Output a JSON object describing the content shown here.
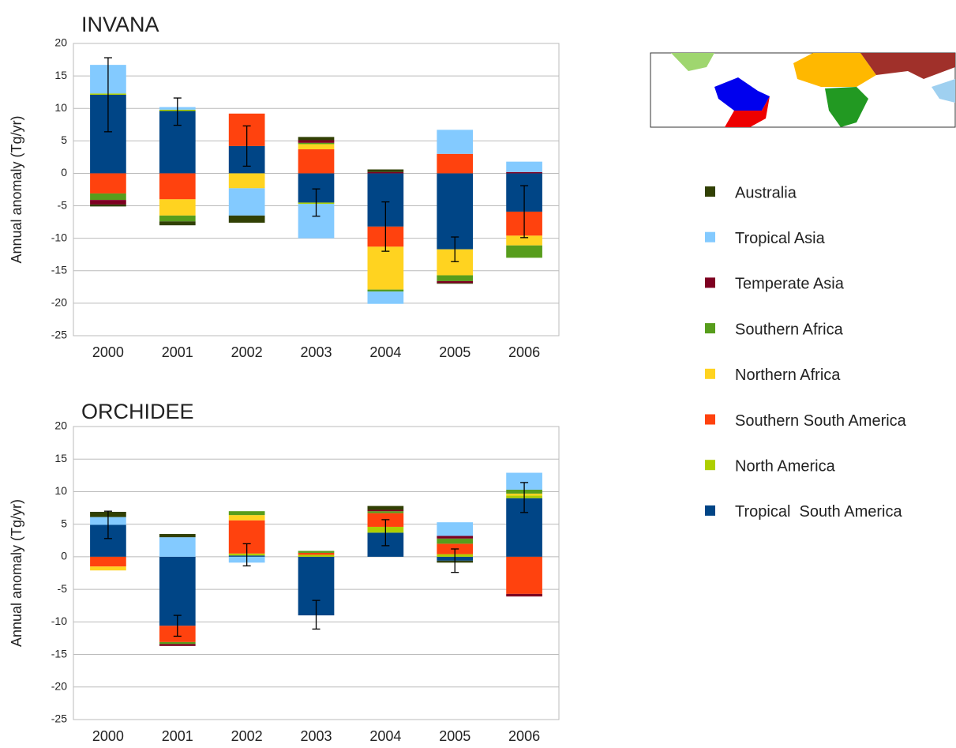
{
  "chart_data": [
    {
      "type": "stacked_bar",
      "title": "INVANA",
      "y_label": "Annual anomaly (Tg/yr)",
      "categories": [
        "2000",
        "2001",
        "2002",
        "2003",
        "2004",
        "2005",
        "2006"
      ],
      "ylim": [
        -25,
        20
      ],
      "yticks": [
        -25,
        -20,
        -15,
        -10,
        -5,
        0,
        5,
        10,
        15,
        20
      ],
      "grid": true,
      "series": [
        {
          "name": "Tropical  South America",
          "color": "#004586",
          "values": [
            12.1,
            9.6,
            4.2,
            -4.5,
            -8.2,
            -11.7,
            -5.9
          ]
        },
        {
          "name": "North America",
          "color": "#aecf00",
          "values": [
            0.2,
            0.2,
            0,
            -0.2,
            0,
            0,
            0
          ]
        },
        {
          "name": "Southern South America",
          "color": "#ff420e",
          "values": [
            -3.1,
            -4.0,
            5.0,
            3.7,
            -3.1,
            3.0,
            -3.7
          ]
        },
        {
          "name": "Northern Africa",
          "color": "#ffd320",
          "values": [
            0,
            -2.5,
            -2.3,
            0.8,
            -6.6,
            -4.0,
            -1.5
          ]
        },
        {
          "name": "Southern Africa",
          "color": "#579d1c",
          "values": [
            -1.0,
            -0.9,
            0,
            0.2,
            -0.3,
            -0.9,
            -1.9
          ]
        },
        {
          "name": "Temperate Asia",
          "color": "#7e0021",
          "values": [
            -0.7,
            0,
            0,
            0.4,
            0.2,
            -0.3,
            0.2
          ]
        },
        {
          "name": "Tropical Asia",
          "color": "#83caff",
          "values": [
            4.4,
            0.4,
            -4.2,
            -5.3,
            -1.9,
            3.7,
            1.6
          ]
        },
        {
          "name": "Australia",
          "color": "#314004",
          "values": [
            -0.3,
            -0.6,
            -1.1,
            0.5,
            0.4,
            -0.1,
            0
          ]
        }
      ],
      "error_bars": {
        "center": [
          12.1,
          9.5,
          4.2,
          -4.5,
          -8.2,
          -11.7,
          -5.9
        ],
        "error": [
          5.7,
          2.1,
          3.1,
          2.1,
          3.8,
          1.9,
          4.0
        ]
      }
    },
    {
      "type": "stacked_bar",
      "title": "ORCHIDEE",
      "y_label": "Annual anomaly (Tg/yr)",
      "categories": [
        "2000",
        "2001",
        "2002",
        "2003",
        "2004",
        "2005",
        "2006"
      ],
      "ylim": [
        -25,
        20
      ],
      "yticks": [
        -25,
        -20,
        -15,
        -10,
        -5,
        0,
        5,
        10,
        15,
        20
      ],
      "grid": true,
      "series": [
        {
          "color": "#004586",
          "values": [
            4.9,
            -10.6,
            0.2,
            -9.0,
            3.7,
            -0.6,
            9.0
          ]
        },
        {
          "color": "#aecf00",
          "values": [
            0,
            0,
            0.3,
            0.3,
            0.9,
            0.4,
            0.4
          ]
        },
        {
          "color": "#ff420e",
          "values": [
            -1.5,
            -2.5,
            5.1,
            0.3,
            2.1,
            1.6,
            -5.7
          ]
        },
        {
          "color": "#ffd320",
          "values": [
            -0.6,
            0,
            0.8,
            0,
            0,
            0,
            0.3
          ]
        },
        {
          "color": "#579d1c",
          "values": [
            0,
            -0.3,
            0.6,
            0.3,
            0.3,
            0.8,
            0.6
          ]
        },
        {
          "color": "#7e0021",
          "values": [
            0,
            -0.3,
            0,
            0,
            0.2,
            0.4,
            -0.4
          ]
        },
        {
          "color": "#83caff",
          "values": [
            1.2,
            3.0,
            -0.9,
            0,
            0,
            2.1,
            2.6
          ]
        },
        {
          "color": "#314004",
          "values": [
            0.8,
            0.5,
            0,
            0,
            0.6,
            -0.3,
            0
          ]
        }
      ],
      "error_bars": {
        "center": [
          4.9,
          -10.6,
          0.3,
          -8.9,
          3.7,
          -0.6,
          9.1
        ],
        "error": [
          2.1,
          1.6,
          1.7,
          2.2,
          2.0,
          1.8,
          2.3
        ]
      }
    }
  ]
}
